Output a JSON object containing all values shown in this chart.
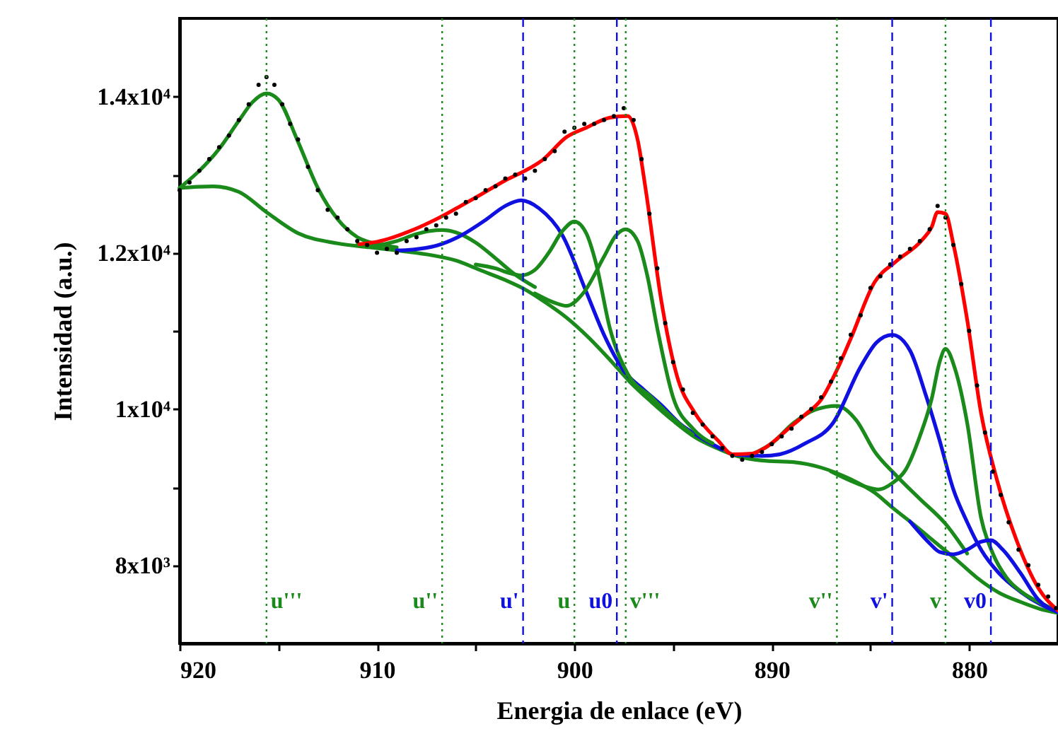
{
  "chart_data": {
    "type": "line",
    "xlabel": "Energia de enlace (eV)",
    "ylabel": "Intensidad (a.u.)",
    "xlim": [
      920,
      875.5
    ],
    "ylim": [
      7000,
      15000
    ],
    "xticks": [
      920,
      {
        "value": 915,
        "label": null
      },
      910,
      {
        "value": 905,
        "label": null
      },
      900,
      {
        "value": 895,
        "label": null
      },
      890,
      {
        "value": 885,
        "label": null
      },
      880
    ],
    "yticks": [
      {
        "value": 8000,
        "label": "8x10³"
      },
      {
        "value": 9000,
        "label": null
      },
      {
        "value": 10000,
        "label": "1x10⁴"
      },
      {
        "value": 11000,
        "label": null
      },
      {
        "value": 12000,
        "label": "1.2x10⁴"
      },
      {
        "value": 13000,
        "label": null
      },
      {
        "value": 14000,
        "label": "1.4x10⁴"
      }
    ],
    "grid": false,
    "series": [
      {
        "type": "scatter",
        "marker": "circle",
        "color": "#000000",
        "x": [
          920,
          919.5,
          919,
          918.5,
          918,
          917.5,
          917,
          916.5,
          916,
          915.6,
          915.2,
          914.8,
          914.4,
          914,
          913.5,
          913,
          912.5,
          912,
          911.5,
          911,
          910.5,
          910,
          909.5,
          909,
          908.5,
          908,
          907.5,
          907,
          906.5,
          906,
          905.5,
          905,
          904.5,
          904,
          903.5,
          903,
          902.5,
          902,
          901.5,
          901,
          900.5,
          900,
          899.5,
          899,
          898.5,
          898,
          897.5,
          897,
          896.6,
          896.2,
          895.8,
          895.4,
          895,
          894.5,
          894,
          893.5,
          893,
          892.5,
          892,
          891.5,
          891,
          890.5,
          890,
          889.5,
          889,
          888.5,
          888,
          887.5,
          887,
          886.5,
          886,
          885.5,
          885,
          884.5,
          884,
          883.5,
          883,
          882.5,
          882,
          881.6,
          881.2,
          880.8,
          880.4,
          880,
          879.6,
          879.2,
          878.8,
          878.4,
          878,
          877.5,
          877,
          876.5,
          876,
          875.6
        ],
        "values": [
          12800,
          12900,
          13050,
          13200,
          13350,
          13500,
          13700,
          13900,
          14150,
          14250,
          14150,
          13900,
          13650,
          13450,
          13100,
          12800,
          12550,
          12450,
          12300,
          12150,
          12100,
          12000,
          12050,
          12000,
          12150,
          12200,
          12300,
          12350,
          12450,
          12500,
          12650,
          12700,
          12800,
          12850,
          12950,
          13000,
          12950,
          13050,
          13200,
          13300,
          13550,
          13600,
          13650,
          13650,
          13700,
          13750,
          13850,
          13700,
          13200,
          12500,
          11800,
          11100,
          10600,
          10250,
          9950,
          9800,
          9650,
          9500,
          9400,
          9350,
          9400,
          9450,
          9550,
          9650,
          9750,
          9900,
          10000,
          10150,
          10350,
          10650,
          10950,
          11200,
          11550,
          11700,
          11850,
          11950,
          12050,
          12150,
          12300,
          12600,
          12450,
          12100,
          11600,
          11000,
          10300,
          9700,
          9200,
          8900,
          8550,
          8200,
          8000,
          7750,
          7600,
          7450
        ]
      },
      {
        "type": "line",
        "color": "#1a8a1a",
        "x": [
          920,
          918.3,
          917,
          915.6,
          914,
          912,
          910.4,
          909,
          907.5,
          906,
          904.7,
          903.5,
          902.5,
          901.5,
          900.4,
          899.3,
          898.2,
          897.2,
          896.1,
          895,
          893.9,
          892.8,
          891.8,
          890.5,
          888.9,
          887.5,
          886,
          884.8,
          883.9,
          882.8,
          881.7,
          880.6,
          879.6,
          878.5,
          877.4,
          876.4,
          875.5
        ],
        "values": [
          12830,
          12850,
          12780,
          12520,
          12250,
          12120,
          12070,
          12030,
          11980,
          11900,
          11770,
          11650,
          11530,
          11370,
          11170,
          10920,
          10630,
          10350,
          10090,
          9850,
          9640,
          9500,
          9400,
          9340,
          9320,
          9250,
          9100,
          8930,
          8740,
          8520,
          8290,
          8060,
          7840,
          7650,
          7530,
          7440,
          7390
        ]
      },
      {
        "type": "line",
        "color": "#1a8a1a",
        "x": [
          920,
          919,
          918,
          917,
          916.3,
          915.6,
          915,
          914,
          913,
          912,
          911,
          910,
          909
        ],
        "values": [
          12830,
          13050,
          13330,
          13690,
          13930,
          14040,
          13960,
          13420,
          12830,
          12430,
          12200,
          12110,
          12070
        ]
      },
      {
        "type": "line",
        "color": "#1a8a1a",
        "x": [
          911,
          910,
          909,
          908,
          907.3,
          906.7,
          906,
          905,
          904,
          903,
          902
        ],
        "values": [
          12100,
          12100,
          12150,
          12240,
          12280,
          12290,
          12260,
          12130,
          11930,
          11720,
          11560
        ]
      },
      {
        "type": "line",
        "color": "#1010e0",
        "x": [
          909,
          908.2,
          907,
          905.9,
          904.5,
          903.5,
          902.7,
          901.8,
          900.6,
          899.4,
          898.5,
          897.5,
          896.5,
          895.6,
          894.6,
          893.7,
          892.5
        ],
        "values": [
          12030,
          12040,
          12090,
          12200,
          12420,
          12600,
          12670,
          12570,
          12220,
          11500,
          10950,
          10490,
          10250,
          10050,
          9800,
          9650,
          9480
        ]
      },
      {
        "type": "line",
        "color": "#1a8a1a",
        "x": [
          905,
          904,
          903.3,
          902.7,
          902,
          901.3,
          900.6,
          900,
          899.4,
          898.9,
          898.2,
          897.3,
          896.1,
          895,
          894
        ],
        "values": [
          11850,
          11800,
          11740,
          11710,
          11780,
          12000,
          12280,
          12400,
          12250,
          11860,
          11030,
          10450,
          10150,
          9880,
          9670
        ]
      },
      {
        "type": "line",
        "color": "#1a8a1a",
        "x": [
          902,
          901,
          900.4,
          899.5,
          898.5,
          897.9,
          897.4,
          896.8,
          896.3,
          895.8,
          895,
          894,
          893
        ],
        "values": [
          11480,
          11360,
          11320,
          11500,
          11950,
          12220,
          12300,
          12150,
          11700,
          11030,
          10150,
          9750,
          9560
        ]
      },
      {
        "type": "line",
        "color": "#1a8a1a",
        "x": [
          891,
          890,
          888.9,
          887.8,
          886.7,
          885.7,
          884.8,
          883.7,
          882.5,
          881.2,
          880.1
        ],
        "values": [
          9420,
          9560,
          9820,
          9990,
          10040,
          9850,
          9460,
          9150,
          8850,
          8530,
          8150
        ]
      },
      {
        "type": "line",
        "color": "#1010e0",
        "x": [
          892,
          890.5,
          889.6,
          888.3,
          886.9,
          885.5,
          884.7,
          883.9,
          883,
          882.2,
          881.5,
          880.8,
          880.1,
          879.4,
          878.5,
          877.4,
          876.4,
          875.5
        ],
        "values": [
          9420,
          9400,
          9420,
          9560,
          9820,
          10540,
          10850,
          10950,
          10750,
          10180,
          9600,
          8970,
          8550,
          8200,
          7900,
          7660,
          7500,
          7400
        ]
      },
      {
        "type": "line",
        "color": "#1a8a1a",
        "x": [
          887,
          886,
          885.3,
          884.6,
          883.9,
          883.2,
          882.5,
          881.9,
          881.5,
          881.2,
          880.7,
          880.1,
          879.4,
          878.8,
          878.1,
          877.3,
          876.5,
          875.5
        ],
        "values": [
          9200,
          9080,
          9010,
          8970,
          9050,
          9230,
          9650,
          10130,
          10600,
          10770,
          10500,
          9820,
          8610,
          8150,
          7840,
          7650,
          7530,
          7420
        ]
      },
      {
        "type": "line",
        "color": "#1010e0",
        "x": [
          883,
          882,
          881.5,
          880.8,
          880.1,
          879.4,
          878.9,
          878.3,
          877.4,
          876.5,
          875.5
        ],
        "values": [
          8560,
          8280,
          8170,
          8140,
          8200,
          8300,
          8320,
          8200,
          7900,
          7560,
          7400
        ]
      },
      {
        "type": "line",
        "color": "#ff0000",
        "x": [
          910.9,
          910,
          908.2,
          907,
          905.9,
          904.5,
          903.4,
          902.5,
          901.6,
          900.4,
          899.4,
          898.2,
          897.3,
          896.8,
          896.4,
          895.6,
          894.8,
          893.9,
          892.7,
          892,
          891,
          890.3,
          889.1,
          888.3,
          887.5,
          886.7,
          886,
          884.8,
          883.7,
          882.4,
          881.9,
          881.6,
          881.2,
          880.8,
          880.1,
          879.4,
          878.6,
          877.6,
          876.5,
          875.5
        ],
        "values": [
          12110,
          12140,
          12290,
          12430,
          12580,
          12780,
          12940,
          13050,
          13190,
          13480,
          13600,
          13730,
          13750,
          13450,
          12830,
          11390,
          10420,
          9950,
          9590,
          9420,
          9430,
          9510,
          9760,
          9930,
          10120,
          10500,
          10900,
          11620,
          11890,
          12160,
          12330,
          12520,
          12500,
          12110,
          11140,
          9950,
          9100,
          8320,
          7710,
          7420
        ]
      }
    ],
    "ref_lines": [
      {
        "axis": "x",
        "value": 915.6,
        "label": "u'''",
        "color": "#1a8a1a",
        "line_style": "dotted"
      },
      {
        "axis": "x",
        "value": 906.7,
        "label": "u''",
        "color": "#1a8a1a",
        "line_style": "dotted"
      },
      {
        "axis": "x",
        "value": 902.6,
        "label": "u'",
        "color": "#1010e0",
        "line_style": "dashed"
      },
      {
        "axis": "x",
        "value": 900.0,
        "label": "u",
        "color": "#1a8a1a",
        "line_style": "dotted"
      },
      {
        "axis": "x",
        "value": 897.85,
        "label": "u0",
        "color": "#1010e0",
        "line_style": "dashed"
      },
      {
        "axis": "x",
        "value": 897.4,
        "label": "v'''",
        "color": "#1a8a1a",
        "line_style": "dotted"
      },
      {
        "axis": "x",
        "value": 886.7,
        "label": "v''",
        "color": "#1a8a1a",
        "line_style": "dotted"
      },
      {
        "axis": "x",
        "value": 883.9,
        "label": "v'",
        "color": "#1010e0",
        "line_style": "dashed"
      },
      {
        "axis": "x",
        "value": 881.2,
        "label": "v",
        "color": "#1a8a1a",
        "line_style": "dotted"
      },
      {
        "axis": "x",
        "value": 878.9,
        "label": "v0",
        "color": "#1010e0",
        "line_style": "dashed"
      }
    ]
  }
}
